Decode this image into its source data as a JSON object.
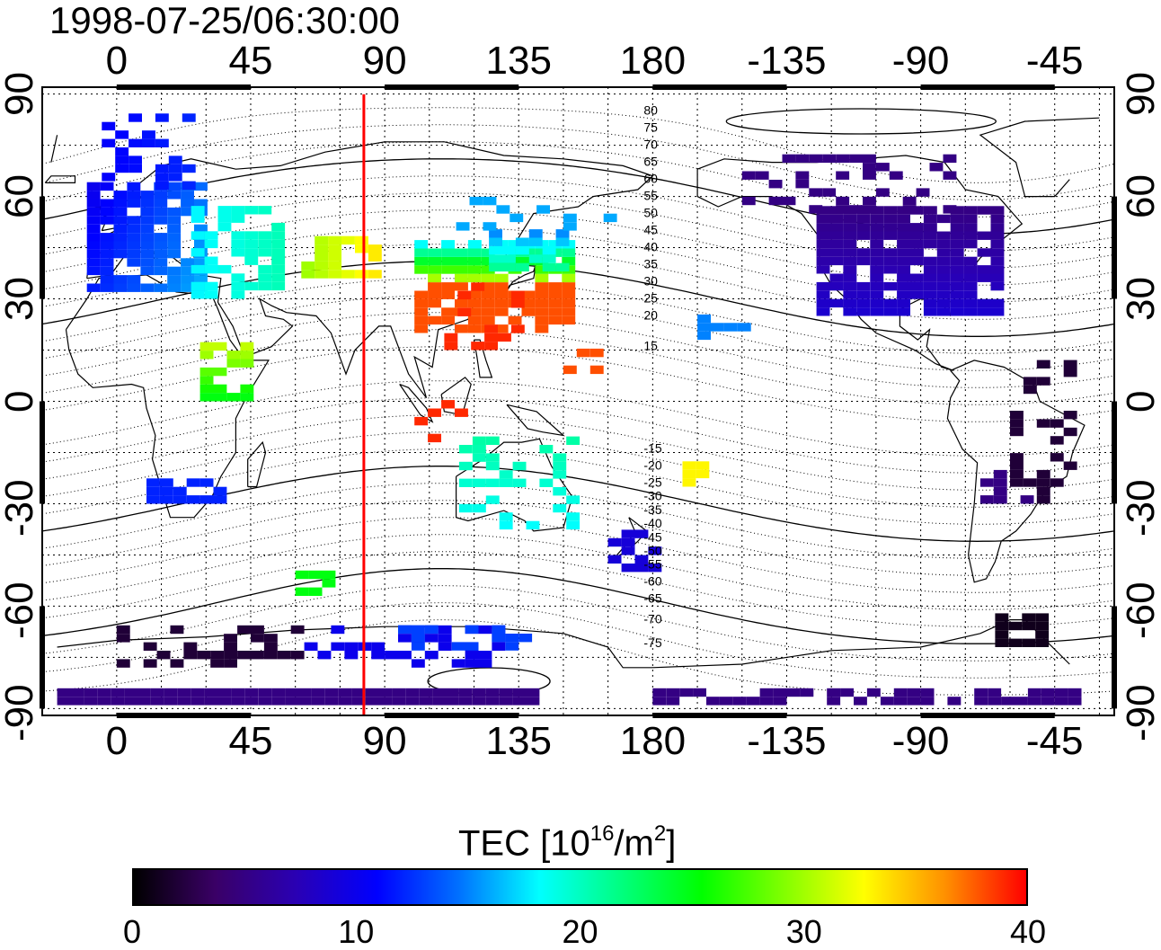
{
  "title": "1998-07-25/06:30:00",
  "axes": {
    "top_ticks": [
      "0",
      "45",
      "90",
      "135",
      "180",
      "-135",
      "-90",
      "-45"
    ],
    "bottom_ticks": [
      "0",
      "45",
      "90",
      "135",
      "180",
      "-135",
      "-90",
      "-45"
    ],
    "left_ticks": [
      "90",
      "60",
      "30",
      "0",
      "-30",
      "-60",
      "-90"
    ],
    "right_ticks": [
      "90",
      "60",
      "30",
      "0",
      "-30",
      "-60",
      "-90"
    ]
  },
  "contour_labels": [
    "80",
    "75",
    "70",
    "65",
    "60",
    "55",
    "50",
    "45",
    "40",
    "35",
    "30",
    "25",
    "20",
    "15",
    "-15",
    "-20",
    "-25",
    "-30",
    "-35",
    "-40",
    "-45",
    "-50",
    "-55",
    "-60",
    "-65",
    "-70",
    "-75"
  ],
  "colorbar": {
    "title_main": "TEC  [10",
    "title_sup1": "16",
    "title_mid": "/m",
    "title_sup2": "2",
    "title_end": "]",
    "ticks": [
      "0",
      "10",
      "20",
      "30",
      "40"
    ],
    "range": [
      0,
      40
    ],
    "colors": [
      "#000000",
      "#3a0066",
      "#2a00b4",
      "#0000ff",
      "#0070ff",
      "#00ffff",
      "#00ff80",
      "#00ff00",
      "#80ff00",
      "#ffff00",
      "#ff9000",
      "#ff0000"
    ]
  },
  "marker": {
    "longitude": 83,
    "color": "#ff0000"
  },
  "map": {
    "longitude_range": [
      -25,
      335
    ],
    "latitude_range": [
      -92,
      92
    ],
    "grid_longitudes": [
      0,
      15,
      30,
      45,
      60,
      75,
      90,
      105,
      120,
      135,
      150,
      165,
      180,
      195,
      210,
      225,
      240,
      255,
      270,
      285,
      300,
      315,
      330
    ]
  }
}
